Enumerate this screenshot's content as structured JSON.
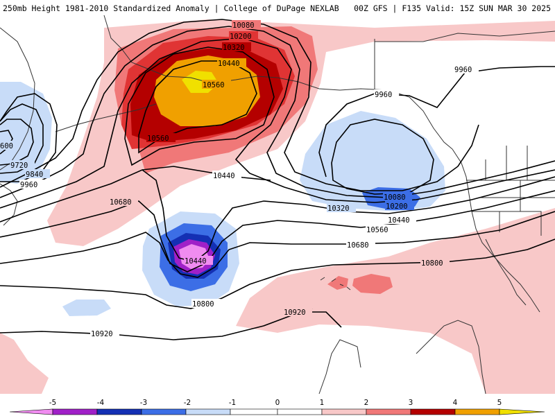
{
  "header": {
    "title_left": "250mb Height 1981-2010 Standardized Anomaly | College of DuPage NEXLAB",
    "title_right": "00Z GFS | F135 Valid: 15Z SUN MAR 30 2025"
  },
  "colors": {
    "anom_neg5": "#f08cf0",
    "anom_neg4": "#a020c8",
    "anom_neg3": "#1430b4",
    "anom_neg2": "#3c6ee6",
    "anom_neg1": "#c8dcf8",
    "anom_pos1": "#f8c8c8",
    "anom_pos2": "#f07878",
    "anom_pos3": "#e03434",
    "anom_pos4": "#b40000",
    "anom_pos5": "#f0a000",
    "anom_pos6": "#f0e000",
    "contour": "#000000",
    "coastline": "#333333"
  },
  "contour_labels": [
    {
      "text": "10080",
      "id": "l1"
    },
    {
      "text": "10200",
      "id": "l2"
    },
    {
      "text": "10320",
      "id": "l3"
    },
    {
      "text": "10440",
      "id": "l4"
    },
    {
      "text": "10560",
      "id": "l5"
    },
    {
      "text": "10560",
      "id": "l6"
    },
    {
      "text": "10440",
      "id": "l7"
    },
    {
      "text": "10680",
      "id": "l8"
    },
    {
      "text": "10440",
      "id": "l9"
    },
    {
      "text": "10800",
      "id": "l10"
    },
    {
      "text": "10920",
      "id": "l11"
    },
    {
      "text": "10920",
      "id": "l12"
    },
    {
      "text": "9960",
      "id": "l13"
    },
    {
      "text": "9960",
      "id": "l14"
    },
    {
      "text": "10080",
      "id": "l15"
    },
    {
      "text": "10200",
      "id": "l16"
    },
    {
      "text": "10320",
      "id": "l17"
    },
    {
      "text": "10440",
      "id": "l18"
    },
    {
      "text": "10560",
      "id": "l19"
    },
    {
      "text": "10680",
      "id": "l20"
    },
    {
      "text": "10800",
      "id": "l21"
    },
    {
      "text": "600",
      "id": "l22"
    },
    {
      "text": "9720",
      "id": "l23"
    },
    {
      "text": "9840",
      "id": "l24"
    },
    {
      "text": "9960",
      "id": "l25"
    }
  ],
  "colorbar": {
    "ticks": [
      "-5",
      "-4",
      "-3",
      "-2",
      "-1",
      "0",
      "1",
      "2",
      "3",
      "4",
      "5"
    ]
  }
}
